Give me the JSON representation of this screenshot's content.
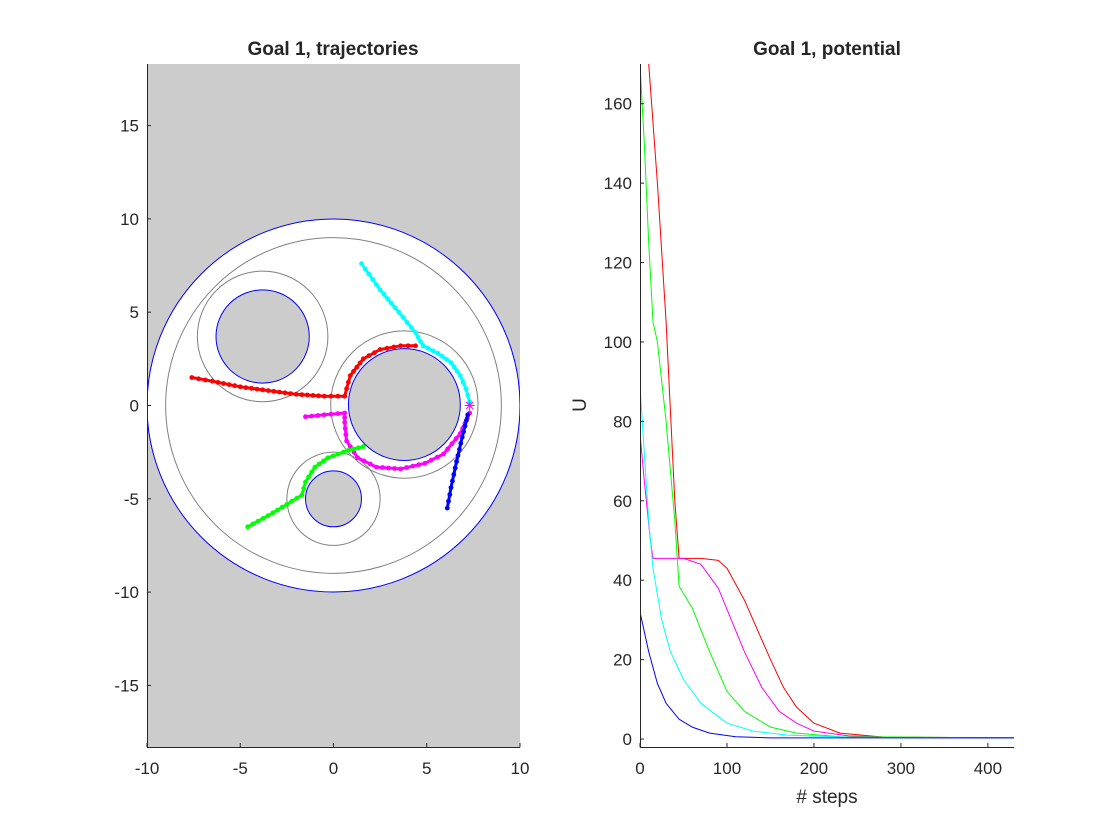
{
  "figure": {
    "left_title": "Goal 1, trajectories",
    "right_title": "Goal 1, potential"
  },
  "chart_data": [
    {
      "type": "scatter",
      "title": "Goal 1, trajectories",
      "xlabel": "",
      "ylabel": "",
      "xlim": [
        -10,
        10
      ],
      "ylim": [
        -18.3,
        18.3
      ],
      "xticks": [
        -10,
        -5,
        0,
        5,
        10
      ],
      "yticks": [
        -15,
        -10,
        -5,
        0,
        5,
        10,
        15
      ],
      "background_color": "#cccccc",
      "grid": false,
      "workspace": {
        "center": [
          0,
          0
        ],
        "radius": 10,
        "boundary_color": "#0000ff",
        "inner_guide_radius": 9
      },
      "obstacles": [
        {
          "center": [
            -3.8,
            3.7
          ],
          "radius": 2.5,
          "guide_radius": 3.5
        },
        {
          "center": [
            3.8,
            0.05
          ],
          "radius": 3.0,
          "guide_radius": 3.95
        },
        {
          "center": [
            0,
            -5.0
          ],
          "radius": 1.5,
          "guide_radius": 2.5
        }
      ],
      "goal": {
        "x": 7.3,
        "y": 0.0,
        "color": "#ff00ff",
        "marker": "*"
      },
      "series": [
        {
          "color": "#ff0000",
          "points": [
            [
              -7.6,
              1.5
            ],
            [
              -6.5,
              1.3
            ],
            [
              -5.0,
              1.0
            ],
            [
              -3.5,
              0.8
            ],
            [
              -2.0,
              0.6
            ],
            [
              -0.5,
              0.5
            ],
            [
              0.6,
              0.5
            ],
            [
              0.7,
              0.9
            ],
            [
              0.9,
              1.6
            ],
            [
              1.6,
              2.5
            ],
            [
              2.5,
              3.0
            ],
            [
              3.6,
              3.2
            ],
            [
              4.4,
              3.2
            ]
          ]
        },
        {
          "color": "#00ffff",
          "points": [
            [
              1.5,
              7.6
            ],
            [
              2.5,
              6.2
            ],
            [
              3.5,
              5.0
            ],
            [
              4.4,
              3.9
            ],
            [
              4.8,
              3.2
            ],
            [
              5.6,
              2.8
            ],
            [
              6.3,
              2.3
            ],
            [
              6.8,
              1.6
            ],
            [
              7.1,
              0.9
            ],
            [
              7.3,
              0.2
            ]
          ]
        },
        {
          "color": "#ff00ff",
          "points": [
            [
              -1.5,
              -0.6
            ],
            [
              -0.5,
              -0.5
            ],
            [
              0.6,
              -0.4
            ],
            [
              0.6,
              -0.9
            ],
            [
              0.7,
              -1.9
            ],
            [
              1.3,
              -2.8
            ],
            [
              2.3,
              -3.3
            ],
            [
              3.6,
              -3.4
            ],
            [
              4.9,
              -3.1
            ],
            [
              5.9,
              -2.6
            ],
            [
              6.8,
              -1.5
            ],
            [
              7.3,
              -0.4
            ]
          ]
        },
        {
          "color": "#00ff00",
          "points": [
            [
              -4.6,
              -6.5
            ],
            [
              -3.5,
              -5.9
            ],
            [
              -2.5,
              -5.3
            ],
            [
              -1.7,
              -4.8
            ],
            [
              -1.5,
              -4.1
            ],
            [
              -1.0,
              -3.3
            ],
            [
              -0.3,
              -2.8
            ],
            [
              0.8,
              -2.4
            ],
            [
              1.6,
              -2.2
            ]
          ]
        },
        {
          "color": "#0000ff",
          "points": [
            [
              6.1,
              -5.5
            ],
            [
              6.3,
              -4.4
            ],
            [
              6.6,
              -3.0
            ],
            [
              6.9,
              -1.7
            ],
            [
              7.2,
              -0.5
            ]
          ]
        }
      ]
    },
    {
      "type": "line",
      "title": "Goal 1, potential",
      "xlabel": "# steps",
      "ylabel": "U",
      "xlim": [
        0,
        430
      ],
      "ylim": [
        -2,
        170
      ],
      "xticks": [
        0,
        100,
        200,
        300,
        400
      ],
      "yticks": [
        0,
        20,
        40,
        60,
        80,
        100,
        120,
        140,
        160
      ],
      "grid": false,
      "series": [
        {
          "color": "#ff0000",
          "points": [
            [
              5,
              185
            ],
            [
              10,
              170
            ],
            [
              20,
              140
            ],
            [
              30,
              105
            ],
            [
              40,
              60
            ],
            [
              45,
              45.5
            ],
            [
              70,
              45.5
            ],
            [
              90,
              45
            ],
            [
              100,
              43
            ],
            [
              120,
              35
            ],
            [
              140,
              25
            ],
            [
              150,
              20
            ],
            [
              165,
              13
            ],
            [
              180,
              8
            ],
            [
              200,
              4
            ],
            [
              230,
              1.5
            ],
            [
              280,
              0.5
            ],
            [
              430,
              0.3
            ]
          ]
        },
        {
          "color": "#ff00ff",
          "points": [
            [
              0,
              77
            ],
            [
              5,
              65
            ],
            [
              12,
              50
            ],
            [
              15,
              45.5
            ],
            [
              50,
              45.5
            ],
            [
              70,
              44
            ],
            [
              90,
              38
            ],
            [
              105,
              30
            ],
            [
              120,
              22
            ],
            [
              140,
              13
            ],
            [
              160,
              7
            ],
            [
              180,
              4
            ],
            [
              200,
              2
            ],
            [
              240,
              0.8
            ],
            [
              300,
              0.4
            ],
            [
              430,
              0.3
            ]
          ]
        },
        {
          "color": "#00ff00",
          "points": [
            [
              0,
              170
            ],
            [
              5,
              150
            ],
            [
              10,
              125
            ],
            [
              15,
              105
            ],
            [
              20,
              100
            ],
            [
              30,
              80
            ],
            [
              40,
              55
            ],
            [
              45,
              38.5
            ],
            [
              60,
              33
            ],
            [
              80,
              22
            ],
            [
              100,
              12
            ],
            [
              120,
              7
            ],
            [
              150,
              3
            ],
            [
              180,
              1.5
            ],
            [
              230,
              0.6
            ],
            [
              430,
              0.3
            ]
          ]
        },
        {
          "color": "#00ffff",
          "points": [
            [
              0,
              89
            ],
            [
              5,
              72
            ],
            [
              10,
              55
            ],
            [
              15,
              43
            ],
            [
              25,
              30
            ],
            [
              35,
              22
            ],
            [
              50,
              15
            ],
            [
              70,
              9
            ],
            [
              100,
              4
            ],
            [
              130,
              2
            ],
            [
              170,
              1
            ],
            [
              250,
              0.4
            ],
            [
              430,
              0.3
            ]
          ]
        },
        {
          "color": "#0000ff",
          "points": [
            [
              0,
              32
            ],
            [
              10,
              22
            ],
            [
              20,
              14
            ],
            [
              30,
              9
            ],
            [
              45,
              5
            ],
            [
              60,
              3
            ],
            [
              80,
              1.5
            ],
            [
              110,
              0.6
            ],
            [
              150,
              0.3
            ],
            [
              430,
              0.3
            ]
          ]
        }
      ]
    }
  ]
}
